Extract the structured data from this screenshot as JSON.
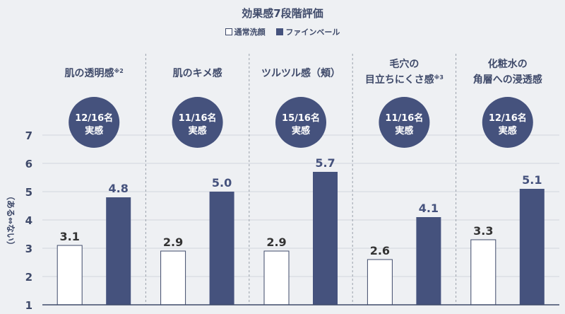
{
  "chart_data": {
    "type": "bar",
    "title": "効果感7段階評価",
    "ylabel": "（ある⇔ない）",
    "ylim": [
      1,
      7
    ],
    "yticks": [
      "1",
      "2",
      "3",
      "4",
      "5",
      "6",
      "7"
    ],
    "grid": true,
    "legend_position": "top-center",
    "categories": [
      {
        "lines": [
          "肌の透明感"
        ],
        "note": "※2",
        "badge": [
          "12/16名",
          "実感"
        ]
      },
      {
        "lines": [
          "肌のキメ感"
        ],
        "note": "",
        "badge": [
          "11/16名",
          "実感"
        ]
      },
      {
        "lines": [
          "ツルツル感（頬）"
        ],
        "note": "",
        "badge": [
          "15/16名",
          "実感"
        ]
      },
      {
        "lines": [
          "毛穴の",
          "目立ちにくさ感"
        ],
        "note": "※3",
        "badge": [
          "11/16名",
          "実感"
        ]
      },
      {
        "lines": [
          "化粧水の",
          "角層への浸透感"
        ],
        "note": "",
        "badge": [
          "12/16名",
          "実感"
        ]
      }
    ],
    "series": [
      {
        "name": "通常洗顔",
        "color": "#ffffff",
        "values": [
          3.1,
          2.9,
          2.9,
          2.6,
          3.3
        ]
      },
      {
        "name": "ファインベール",
        "color": "#45527d",
        "values": [
          4.8,
          5.0,
          5.7,
          4.1,
          5.1
        ]
      }
    ]
  }
}
